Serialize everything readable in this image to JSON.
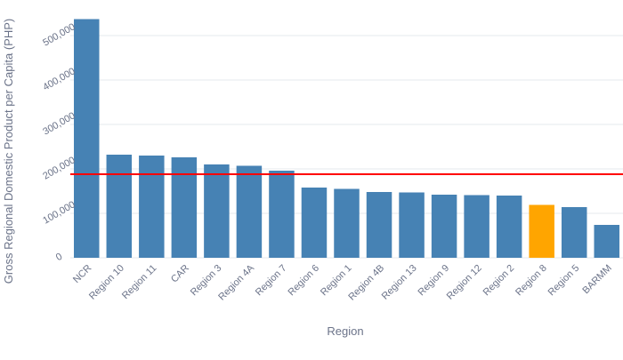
{
  "chart_data": {
    "type": "bar",
    "xlabel": "Region",
    "ylabel": "Gross Regional Domestic Product per Capita (PHP)",
    "categories": [
      "NCR",
      "Region 10",
      "Region 11",
      "CAR",
      "Region 3",
      "Region 4A",
      "Region 7",
      "Region 6",
      "Region 1",
      "Region 4B",
      "Region 13",
      "Region 9",
      "Region 12",
      "Region 2",
      "Region 8",
      "Region 5",
      "BARMM"
    ],
    "values": [
      537000,
      232000,
      230000,
      226000,
      210000,
      207000,
      196000,
      158000,
      155000,
      148000,
      147000,
      142000,
      141000,
      140000,
      119000,
      114000,
      74000
    ],
    "highlight_category": "Region 8",
    "colors": {
      "bar": "#4682b4",
      "highlight": "#ffa500",
      "reference_line": "#ff0000"
    },
    "reference_line_value": 188000,
    "ylim": [
      0,
      580000
    ],
    "yticks": [
      0,
      100000,
      200000,
      300000,
      400000,
      500000
    ],
    "ytick_labels": [
      "0",
      "100,000",
      "200,000",
      "300,000",
      "400,000",
      "500,000"
    ],
    "grid": true
  }
}
